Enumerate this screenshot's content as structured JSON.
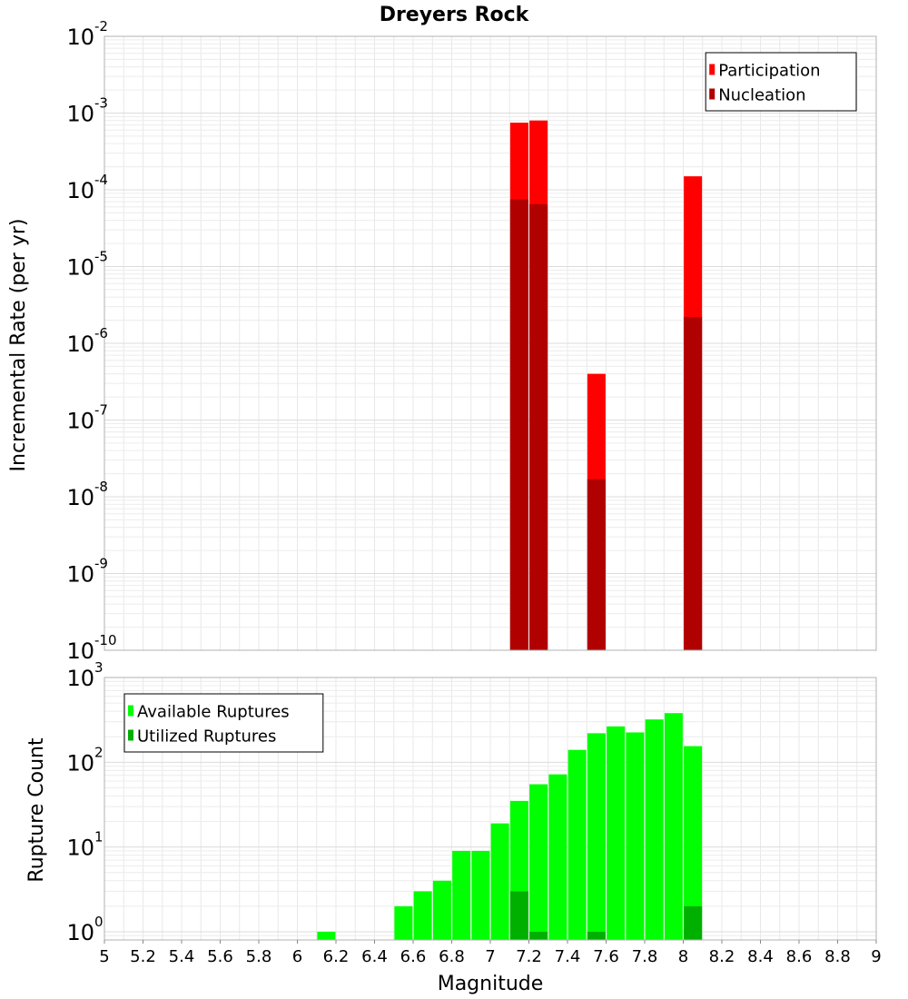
{
  "chart_data": [
    {
      "type": "bar",
      "title": "Dreyers Rock",
      "ylabel": "Incremental Rate (per yr)",
      "xlabel": "",
      "yscale": "log",
      "ylim": [
        1e-10,
        0.01
      ],
      "xlim": [
        5,
        9
      ],
      "grid": true,
      "legend_position": "top-right",
      "colors": {
        "Participation": "#ff0000",
        "Nucleation": "#b00000"
      },
      "y_tick_bases": [
        "10",
        "10",
        "10",
        "10",
        "10",
        "10",
        "10",
        "10",
        "10"
      ],
      "y_tick_exponents": [
        "-10",
        "-9",
        "-8",
        "-7",
        "-6",
        "-5",
        "-4",
        "-3",
        "-2"
      ],
      "series": [
        {
          "name": "Participation",
          "x": [
            7.15,
            7.25,
            7.55,
            8.05
          ],
          "values": [
            0.00075,
            0.0008,
            4e-07,
            0.00015
          ]
        },
        {
          "name": "Nucleation",
          "x": [
            7.15,
            7.25,
            7.55,
            8.05
          ],
          "values": [
            7.5e-05,
            6.5e-05,
            1.7e-08,
            2.2e-06
          ]
        }
      ]
    },
    {
      "type": "bar",
      "title": "",
      "ylabel": "Rupture Count",
      "xlabel": "Magnitude",
      "yscale": "log",
      "ylim": [
        0.8,
        1000
      ],
      "xlim": [
        5,
        9
      ],
      "grid": true,
      "legend_position": "top-left",
      "colors": {
        "Available Ruptures": "#00ff00",
        "Utilized Ruptures": "#00b000"
      },
      "x_ticks": [
        "5",
        "5.2",
        "5.4",
        "5.6",
        "5.8",
        "6",
        "6.2",
        "6.4",
        "6.6",
        "6.8",
        "7",
        "7.2",
        "7.4",
        "7.6",
        "7.8",
        "8",
        "8.2",
        "8.4",
        "8.6",
        "8.8",
        "9"
      ],
      "y_tick_bases": [
        "10",
        "10",
        "10",
        "10"
      ],
      "y_tick_exponents": [
        "0",
        "1",
        "2",
        "3"
      ],
      "series": [
        {
          "name": "Available Ruptures",
          "x": [
            6.15,
            6.55,
            6.65,
            6.75,
            6.85,
            6.95,
            7.05,
            7.15,
            7.25,
            7.35,
            7.45,
            7.55,
            7.65,
            7.75,
            7.85,
            7.95,
            8.05
          ],
          "values": [
            1,
            2,
            3,
            4,
            9,
            9,
            19,
            35,
            55,
            72,
            140,
            220,
            265,
            225,
            320,
            380,
            155
          ]
        },
        {
          "name": "Utilized Ruptures",
          "x": [
            7.15,
            7.25,
            7.55,
            8.05
          ],
          "values": [
            3,
            1,
            1,
            2
          ]
        }
      ]
    }
  ]
}
